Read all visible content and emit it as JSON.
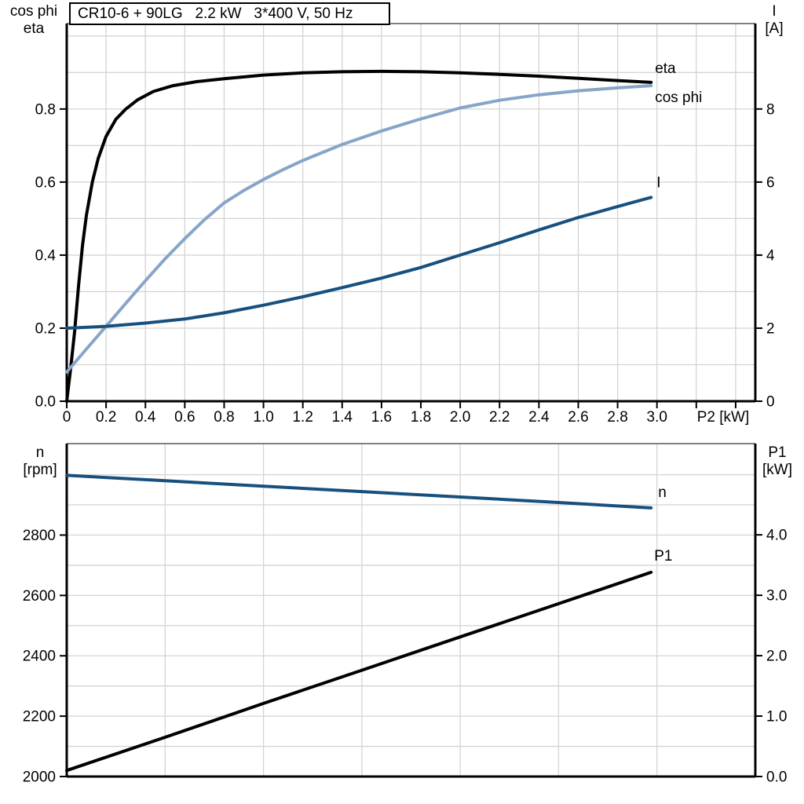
{
  "colors": {
    "black": "#000000",
    "steel_blue": "#87a5c8",
    "navy": "#17507e",
    "grid": "#d4d4d4",
    "frame_gray": "#808080",
    "background": "#ffffff"
  },
  "chart_data": [
    {
      "id": "performance",
      "type": "line",
      "title": "CR10-6 + 90LG   2.2 kW   3*400 V, 50 Hz",
      "x_axis": {
        "label": "P2 [kW]",
        "min": 0,
        "max": 3.5,
        "grid_step": 0.2,
        "grid_max": 3.4,
        "ticks": [
          {
            "v": 0,
            "t": "0"
          },
          {
            "v": 0.2,
            "t": "0.2"
          },
          {
            "v": 0.4,
            "t": "0.4"
          },
          {
            "v": 0.6,
            "t": "0.6"
          },
          {
            "v": 0.8,
            "t": "0.8"
          },
          {
            "v": 1.0,
            "t": "1.0"
          },
          {
            "v": 1.2,
            "t": "1.2"
          },
          {
            "v": 1.4,
            "t": "1.4"
          },
          {
            "v": 1.6,
            "t": "1.6"
          },
          {
            "v": 1.8,
            "t": "1.8"
          },
          {
            "v": 2.0,
            "t": "2.0"
          },
          {
            "v": 2.2,
            "t": "2.2"
          },
          {
            "v": 2.4,
            "t": "2.4"
          },
          {
            "v": 2.6,
            "t": "2.6"
          },
          {
            "v": 2.8,
            "t": "2.8"
          },
          {
            "v": 3.0,
            "t": "3.0"
          },
          {
            "v": 3.2,
            "t": ""
          },
          {
            "v": 3.4,
            "t": ""
          }
        ]
      },
      "left_axis": {
        "label": [
          "cos phi",
          "eta"
        ],
        "min": 0,
        "max": 1.034,
        "grid_step": 0.1,
        "grid_max": 1.0,
        "ticks": [
          {
            "v": 0,
            "t": "0.0"
          },
          {
            "v": 0.2,
            "t": "0.2"
          },
          {
            "v": 0.4,
            "t": "0.4"
          },
          {
            "v": 0.6,
            "t": "0.6"
          },
          {
            "v": 0.8,
            "t": "0.8"
          }
        ]
      },
      "right_axis": {
        "label": [
          "I",
          "[A]"
        ],
        "min": 0,
        "max": 10.34,
        "ticks": [
          {
            "v": 0,
            "t": "0"
          },
          {
            "v": 2,
            "t": "2"
          },
          {
            "v": 4,
            "t": "4"
          },
          {
            "v": 6,
            "t": "6"
          },
          {
            "v": 8,
            "t": "8"
          }
        ]
      },
      "series": [
        {
          "name": "eta",
          "axis": "left",
          "color": "#000000",
          "points": [
            [
              0,
              0
            ],
            [
              0.02,
              0.09
            ],
            [
              0.04,
              0.19
            ],
            [
              0.06,
              0.315
            ],
            [
              0.08,
              0.425
            ],
            [
              0.1,
              0.51
            ],
            [
              0.13,
              0.6
            ],
            [
              0.16,
              0.665
            ],
            [
              0.2,
              0.725
            ],
            [
              0.25,
              0.772
            ],
            [
              0.3,
              0.8
            ],
            [
              0.36,
              0.825
            ],
            [
              0.44,
              0.848
            ],
            [
              0.54,
              0.864
            ],
            [
              0.66,
              0.875
            ],
            [
              0.8,
              0.883
            ],
            [
              1.0,
              0.893
            ],
            [
              1.2,
              0.899
            ],
            [
              1.4,
              0.902
            ],
            [
              1.6,
              0.903
            ],
            [
              1.8,
              0.902
            ],
            [
              2.0,
              0.899
            ],
            [
              2.2,
              0.895
            ],
            [
              2.4,
              0.89
            ],
            [
              2.6,
              0.884
            ],
            [
              2.8,
              0.878
            ],
            [
              2.97,
              0.873
            ]
          ]
        },
        {
          "name": "cos phi",
          "axis": "left",
          "color": "#87a5c8",
          "points": [
            [
              0,
              0.08
            ],
            [
              0.1,
              0.143
            ],
            [
              0.2,
              0.205
            ],
            [
              0.3,
              0.268
            ],
            [
              0.4,
              0.33
            ],
            [
              0.5,
              0.39
            ],
            [
              0.6,
              0.445
            ],
            [
              0.7,
              0.497
            ],
            [
              0.8,
              0.543
            ],
            [
              0.9,
              0.577
            ],
            [
              1.0,
              0.607
            ],
            [
              1.1,
              0.634
            ],
            [
              1.2,
              0.659
            ],
            [
              1.4,
              0.703
            ],
            [
              1.6,
              0.74
            ],
            [
              1.8,
              0.773
            ],
            [
              2.0,
              0.803
            ],
            [
              2.2,
              0.824
            ],
            [
              2.4,
              0.839
            ],
            [
              2.6,
              0.85
            ],
            [
              2.8,
              0.858
            ],
            [
              2.97,
              0.864
            ]
          ]
        },
        {
          "name": "I",
          "axis": "right",
          "color": "#17507e",
          "points": [
            [
              0,
              2.0
            ],
            [
              0.2,
              2.05
            ],
            [
              0.4,
              2.14
            ],
            [
              0.6,
              2.25
            ],
            [
              0.8,
              2.42
            ],
            [
              1.0,
              2.63
            ],
            [
              1.2,
              2.86
            ],
            [
              1.4,
              3.11
            ],
            [
              1.6,
              3.37
            ],
            [
              1.8,
              3.66
            ],
            [
              2.0,
              4.0
            ],
            [
              2.2,
              4.34
            ],
            [
              2.4,
              4.69
            ],
            [
              2.6,
              5.03
            ],
            [
              2.8,
              5.33
            ],
            [
              2.97,
              5.58
            ]
          ]
        }
      ]
    },
    {
      "id": "speed-power",
      "type": "line",
      "x_axis": {
        "label": "",
        "min": 0,
        "max": 3.5,
        "grid_step": 0.5,
        "grid_max": 3.0,
        "ticks": []
      },
      "left_axis": {
        "label": [
          "n",
          "[rpm]"
        ],
        "min": 2000,
        "max": 3103,
        "grid_step": 100,
        "grid_max": 3000,
        "ticks": [
          {
            "v": 2000,
            "t": "2000"
          },
          {
            "v": 2200,
            "t": "2200"
          },
          {
            "v": 2400,
            "t": "2400"
          },
          {
            "v": 2600,
            "t": "2600"
          },
          {
            "v": 2800,
            "t": "2800"
          }
        ]
      },
      "right_axis": {
        "label": [
          "P1",
          "[kW]"
        ],
        "min": 0,
        "max": 5.51,
        "ticks": [
          {
            "v": 0,
            "t": "0.0"
          },
          {
            "v": 1,
            "t": "1.0"
          },
          {
            "v": 2,
            "t": "2.0"
          },
          {
            "v": 3,
            "t": "3.0"
          },
          {
            "v": 4,
            "t": "4.0"
          }
        ]
      },
      "series": [
        {
          "name": "n",
          "axis": "left",
          "color": "#17507e",
          "points": [
            [
              0,
              2998
            ],
            [
              0.5,
              2980
            ],
            [
              1.0,
              2962
            ],
            [
              1.5,
              2944
            ],
            [
              2.0,
              2926
            ],
            [
              2.5,
              2908
            ],
            [
              2.97,
              2890
            ]
          ]
        },
        {
          "name": "P1",
          "axis": "right",
          "color": "#000000",
          "points": [
            [
              0,
              0.1
            ],
            [
              0.5,
              0.65
            ],
            [
              1.0,
              1.21
            ],
            [
              1.5,
              1.76
            ],
            [
              2.0,
              2.31
            ],
            [
              2.5,
              2.86
            ],
            [
              2.97,
              3.38
            ]
          ]
        }
      ]
    }
  ]
}
